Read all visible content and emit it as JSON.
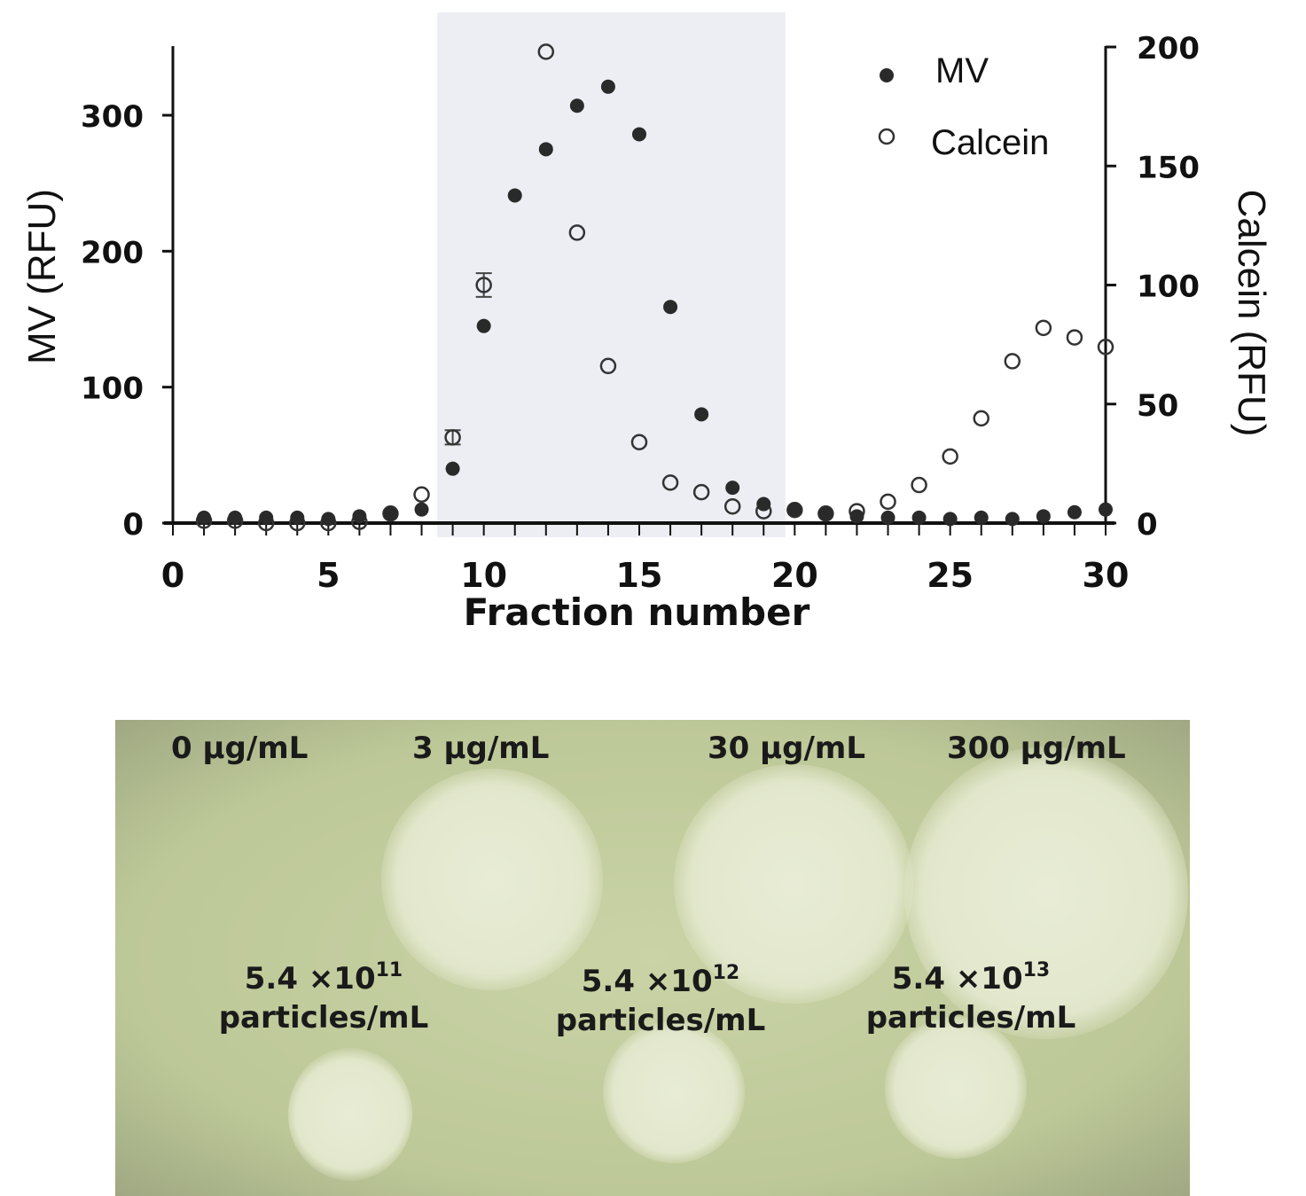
{
  "chart_data": {
    "type": "scatter",
    "xlabel": "Fraction number",
    "ylabel": "MV (RFU)",
    "y2label": "Calcein (RFU)",
    "xlim": [
      0,
      30
    ],
    "ylim": [
      0,
      350
    ],
    "y2lim": [
      0,
      200
    ],
    "xticks": [
      0,
      5,
      10,
      15,
      20,
      25,
      30
    ],
    "yticks": [
      0,
      100,
      200,
      300
    ],
    "y2ticks": [
      0,
      50,
      100,
      150,
      200
    ],
    "highlight_range": [
      8.5,
      19.7
    ],
    "legend_position": "top-right",
    "grid": false,
    "x": [
      1,
      2,
      3,
      4,
      5,
      6,
      7,
      8,
      9,
      10,
      11,
      12,
      13,
      14,
      15,
      16,
      17,
      18,
      19,
      20,
      21,
      22,
      23,
      24,
      25,
      26,
      27,
      28,
      29,
      30
    ],
    "series": [
      {
        "name": "MV",
        "axis": "left",
        "marker": "filled-circle",
        "values": [
          4,
          4,
          4,
          4,
          3,
          5,
          7,
          10,
          40,
          145,
          241,
          275,
          307,
          321,
          286,
          159,
          80,
          26,
          14,
          10,
          7,
          5,
          4,
          4,
          3,
          4,
          3,
          5,
          8,
          10
        ]
      },
      {
        "name": "Calcein",
        "axis": "right",
        "marker": "open-circle",
        "values": [
          1,
          1,
          0,
          0,
          0,
          0.5,
          4,
          12,
          36,
          100,
          null,
          198,
          122,
          66,
          34,
          17,
          13,
          7,
          5,
          5.5,
          4,
          5,
          9,
          16,
          28,
          44,
          68,
          82,
          78,
          74
        ],
        "error_bars": {
          "10": 5,
          "9": 3
        }
      }
    ]
  },
  "photo": {
    "top_labels": [
      "0 μg/mL",
      "3 μg/mL",
      "30 μg/mL",
      "300 μg/mL"
    ],
    "bottom_labels": [
      {
        "base": "5.4 ×10",
        "exp": "11",
        "unit": "particles/mL"
      },
      {
        "base": "5.4 ×10",
        "exp": "12",
        "unit": "particles/mL"
      },
      {
        "base": "5.4 ×10",
        "exp": "13",
        "unit": "particles/mL"
      }
    ]
  },
  "colors": {
    "highlight": "#eceef4",
    "marker": "#2a2a2a",
    "agar": "#c4cea0"
  }
}
